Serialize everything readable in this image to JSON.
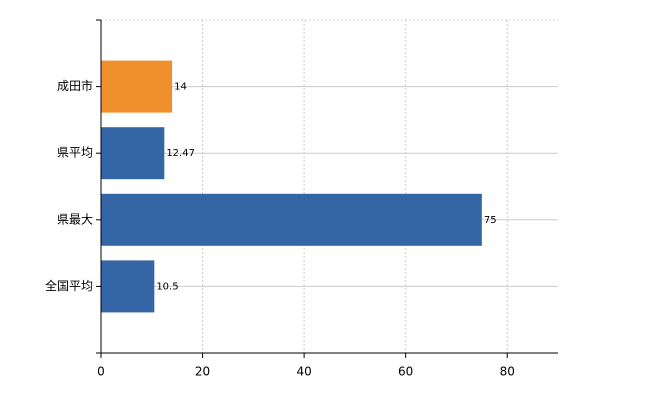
{
  "chart_data": {
    "type": "bar",
    "orientation": "horizontal",
    "categories": [
      "成田市",
      "県平均",
      "県最大",
      "全国平均"
    ],
    "values": [
      14,
      12.47,
      75,
      10.5
    ],
    "colors": [
      "#f0902c",
      "#3465a4",
      "#3465a4",
      "#3465a4"
    ],
    "xlim": [
      0,
      90
    ],
    "xticks": [
      0,
      20,
      40,
      60,
      80
    ],
    "grid": true
  }
}
